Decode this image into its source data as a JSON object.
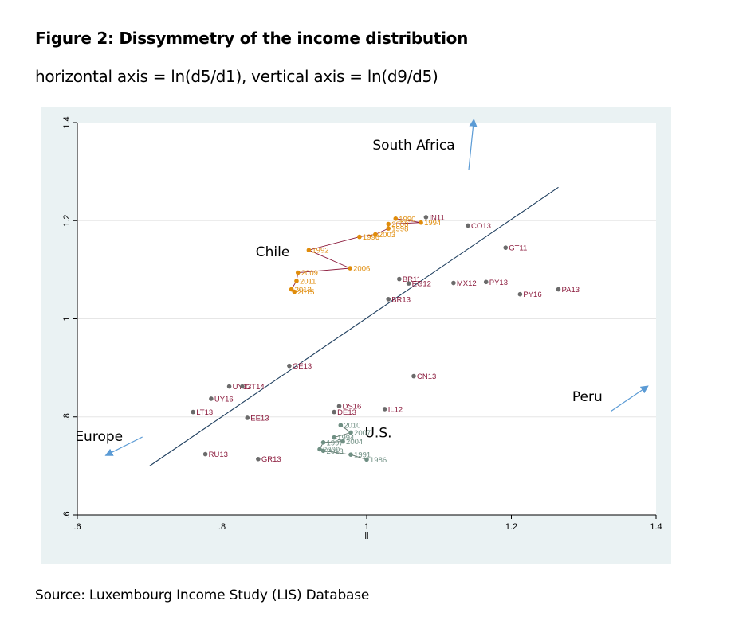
{
  "figure": {
    "title": "Figure 2: Dissymmetry of the income distribution",
    "subtitle": "horizontal axis = ln(d5/d1), vertical axis = ln(d9/d5)",
    "source": "Source: Luxembourg Income Study (LIS) Database"
  },
  "colors": {
    "panel": "#eaf2f3",
    "plot": "#ffffff",
    "grid": "#e6e6e6",
    "country_point": "#6b6b6b",
    "country_label": "#8b1a3c",
    "chile": "#e08c0b",
    "chile_line": "#8b1a3c",
    "us": "#6f8f83",
    "us_line": "#5b6f66",
    "fit_line": "#1f3f5f",
    "arrow": "#5b9bd5"
  },
  "chart_data": {
    "type": "scatter",
    "title": "",
    "xlabel": "ll",
    "ylabel": "",
    "xlim": [
      0.6,
      1.4
    ],
    "ylim": [
      0.6,
      1.4
    ],
    "xticks": [
      ".6",
      ".8",
      "1",
      "1.2",
      "1.4"
    ],
    "yticks": [
      ".6",
      ".8",
      "1",
      "1.2",
      "1.4"
    ],
    "grid": true,
    "fit_line": [
      [
        0.7,
        0.7
      ],
      [
        1.265,
        1.268
      ]
    ],
    "annotations": [
      {
        "text": "South Africa",
        "x": 1.065,
        "y": 1.345
      },
      {
        "text": "Chile",
        "x": 0.87,
        "y": 1.127
      },
      {
        "text": "Peru",
        "x": 1.305,
        "y": 0.832
      },
      {
        "text": "Europe",
        "x": 0.63,
        "y": 0.751
      },
      {
        "text": "U.S.",
        "x": 1.016,
        "y": 0.758
      }
    ],
    "arrows": [
      {
        "from": [
          1.141,
          1.303
        ],
        "to": [
          1.148,
          1.405
        ]
      },
      {
        "from": [
          1.338,
          0.812
        ],
        "to": [
          1.388,
          0.862
        ]
      },
      {
        "from": [
          0.69,
          0.759
        ],
        "to": [
          0.64,
          0.722
        ]
      }
    ],
    "countries": [
      {
        "label": "IN11",
        "x": 1.082,
        "y": 1.207
      },
      {
        "label": "CO13",
        "x": 1.14,
        "y": 1.19
      },
      {
        "label": "GT11",
        "x": 1.192,
        "y": 1.145
      },
      {
        "label": "BR11",
        "x": 1.045,
        "y": 1.081
      },
      {
        "label": "EG12",
        "x": 1.058,
        "y": 1.072
      },
      {
        "label": "MX12",
        "x": 1.12,
        "y": 1.073
      },
      {
        "label": "PY13",
        "x": 1.165,
        "y": 1.075
      },
      {
        "label": "PY16",
        "x": 1.212,
        "y": 1.05
      },
      {
        "label": "PA13",
        "x": 1.265,
        "y": 1.06
      },
      {
        "label": "BR13",
        "x": 1.03,
        "y": 1.04
      },
      {
        "label": "GE13",
        "x": 0.893,
        "y": 0.904
      },
      {
        "label": "CN13",
        "x": 1.065,
        "y": 0.883
      },
      {
        "label": "UY13",
        "x": 0.81,
        "y": 0.862
      },
      {
        "label": "GT14",
        "x": 0.828,
        "y": 0.862
      },
      {
        "label": "UY16",
        "x": 0.785,
        "y": 0.837
      },
      {
        "label": "LT13",
        "x": 0.76,
        "y": 0.81
      },
      {
        "label": "EE13",
        "x": 0.835,
        "y": 0.798
      },
      {
        "label": "IL12",
        "x": 1.025,
        "y": 0.816
      },
      {
        "label": "DS16",
        "x": 0.962,
        "y": 0.822
      },
      {
        "label": "DE13",
        "x": 0.955,
        "y": 0.81
      },
      {
        "label": "RU13",
        "x": 0.777,
        "y": 0.724
      },
      {
        "label": "GR13",
        "x": 0.85,
        "y": 0.714
      }
    ],
    "series": [
      {
        "name": "Chile",
        "points": [
          {
            "label": "1990",
            "x": 1.04,
            "y": 1.204
          },
          {
            "label": "1994",
            "x": 1.075,
            "y": 1.196
          },
          {
            "label": "2000",
            "x": 1.03,
            "y": 1.193
          },
          {
            "label": "1998",
            "x": 1.03,
            "y": 1.184
          },
          {
            "label": "2003",
            "x": 1.012,
            "y": 1.172
          },
          {
            "label": "1996",
            "x": 0.99,
            "y": 1.167
          },
          {
            "label": "1992",
            "x": 0.92,
            "y": 1.14
          },
          {
            "label": "2006",
            "x": 0.977,
            "y": 1.103
          },
          {
            "label": "2009",
            "x": 0.905,
            "y": 1.094
          },
          {
            "label": "2011",
            "x": 0.903,
            "y": 1.077
          },
          {
            "label": "2013",
            "x": 0.896,
            "y": 1.06
          },
          {
            "label": "2015",
            "x": 0.9,
            "y": 1.055
          }
        ],
        "path": [
          "1990",
          "1994",
          "2000",
          "1998",
          "2003",
          "1996",
          "1992",
          "2006",
          "2009",
          "2011",
          "2013",
          "2015"
        ]
      },
      {
        "name": "U.S.",
        "points": [
          {
            "label": "2010",
            "x": 0.964,
            "y": 0.783
          },
          {
            "label": "2007",
            "x": 0.978,
            "y": 0.768
          },
          {
            "label": "1994",
            "x": 0.955,
            "y": 0.758
          },
          {
            "label": "2004",
            "x": 0.967,
            "y": 0.75
          },
          {
            "label": "1997",
            "x": 0.94,
            "y": 0.748
          },
          {
            "label": "2000",
            "x": 0.935,
            "y": 0.734
          },
          {
            "label": "2013",
            "x": 0.94,
            "y": 0.731
          },
          {
            "label": "1991",
            "x": 0.978,
            "y": 0.723
          },
          {
            "label": "1986",
            "x": 1.0,
            "y": 0.713
          }
        ],
        "path": [
          "2010",
          "2007",
          "1994",
          "2004",
          "1997",
          "2000",
          "2013",
          "1991",
          "1986"
        ]
      }
    ]
  }
}
